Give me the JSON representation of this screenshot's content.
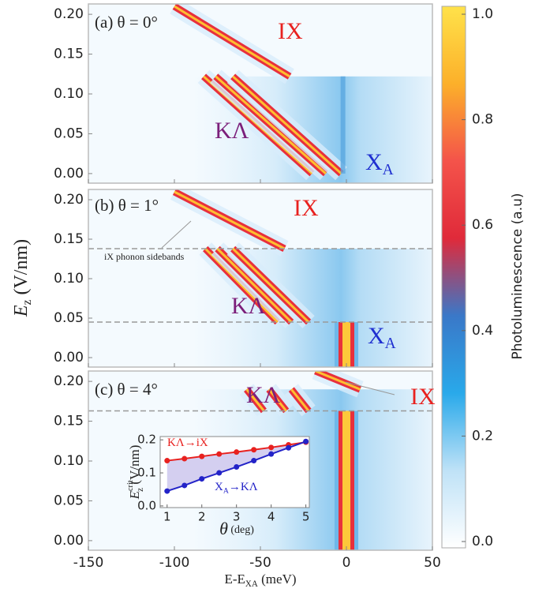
{
  "chart_data": [
    {
      "type": "heatmap-lines",
      "title": "(a) θ = 0°",
      "xlim": [
        -150,
        50
      ],
      "ylim": [
        -0.012,
        0.213
      ],
      "xticks": [
        -150,
        -100,
        -50,
        0,
        50
      ],
      "yticks": [
        {
          "value": 0,
          "label": "0.00"
        },
        {
          "value": 0.05,
          "label": "0.05"
        },
        {
          "value": 0.1,
          "label": "0.10"
        },
        {
          "value": 0.15,
          "label": "0.15"
        },
        {
          "value": 0.2,
          "label": "0.20"
        }
      ],
      "dashed_lines": [],
      "labels": [
        {
          "text": "IX",
          "color": "#e8211f"
        },
        {
          "text": "KΛ",
          "color": "#7b1f7a"
        },
        {
          "text": "X",
          "sub": "A",
          "color": "#1f2fd0"
        }
      ],
      "lines": [
        {
          "x": [
            -100,
            -33
          ],
          "y": [
            0.21,
            0.122
          ],
          "style": "bright"
        },
        {
          "x": [
            -83,
            -20
          ],
          "y": [
            0.122,
            0.0
          ],
          "style": "bright"
        },
        {
          "x": [
            -76,
            -12
          ],
          "y": [
            0.122,
            0.0
          ],
          "style": "bright"
        },
        {
          "x": [
            -66,
            -3
          ],
          "y": [
            0.122,
            0.0
          ],
          "style": "bright"
        },
        {
          "x": [
            -2,
            -2
          ],
          "y": [
            0.0,
            0.122
          ],
          "style": "faint"
        }
      ]
    },
    {
      "type": "heatmap-lines",
      "title": "(b) θ = 1°",
      "xlim": [
        -150,
        50
      ],
      "ylim": [
        -0.012,
        0.213
      ],
      "xticks": [
        -150,
        -100,
        -50,
        0,
        50
      ],
      "yticks": [
        {
          "value": 0,
          "label": "0.00"
        },
        {
          "value": 0.05,
          "label": "0.05"
        },
        {
          "value": 0.1,
          "label": "0.10"
        },
        {
          "value": 0.15,
          "label": "0.15"
        },
        {
          "value": 0.2,
          "label": "0.20"
        }
      ],
      "y_label": {
        "text": "E",
        "sub": "z",
        "after": " (V/nm)"
      },
      "dashed_lines": [
        0.138,
        0.045
      ],
      "annotation": "iX phonon sidebands",
      "labels": [
        {
          "text": "IX",
          "color": "#e8211f"
        },
        {
          "text": "KΛ",
          "color": "#7b1f7a"
        },
        {
          "text": "X",
          "sub": "A",
          "color": "#1f2fd0"
        }
      ],
      "lines": [
        {
          "x": [
            -100,
            -36
          ],
          "y": [
            0.21,
            0.138
          ],
          "style": "bright"
        },
        {
          "x": [
            -82,
            -40
          ],
          "y": [
            0.138,
            0.045
          ],
          "style": "bright"
        },
        {
          "x": [
            -75,
            -32
          ],
          "y": [
            0.138,
            0.045
          ],
          "style": "bright"
        },
        {
          "x": [
            -66,
            -22
          ],
          "y": [
            0.138,
            0.045
          ],
          "style": "bright"
        },
        {
          "x": [
            0,
            0
          ],
          "y": [
            -0.012,
            0.045
          ],
          "style": "wide"
        }
      ]
    },
    {
      "type": "heatmap-lines",
      "title": "(c) θ = 4°",
      "xlim": [
        -150,
        50
      ],
      "ylim": [
        -0.012,
        0.213
      ],
      "xticks": [
        -150,
        -100,
        -50,
        0,
        50
      ],
      "show_xticklabels": true,
      "yticks": [
        {
          "value": 0,
          "label": "0.00"
        },
        {
          "value": 0.05,
          "label": "0.05"
        },
        {
          "value": 0.1,
          "label": "0.10"
        },
        {
          "value": 0.15,
          "label": "0.15"
        },
        {
          "value": 0.2,
          "label": "0.20"
        }
      ],
      "x_label": {
        "text": "E-E",
        "sub": "XA",
        "after": " (meV)"
      },
      "dashed_lines": [
        0.163
      ],
      "labels": [
        {
          "text": "KΛ",
          "color": "#7b1f7a"
        },
        {
          "text": "IX",
          "color": "#e8211f"
        }
      ],
      "lines": [
        {
          "x": [
            -18,
            8
          ],
          "y": [
            0.213,
            0.19
          ],
          "style": "bright"
        },
        {
          "x": [
            -58,
            -48
          ],
          "y": [
            0.19,
            0.163
          ],
          "style": "bright"
        },
        {
          "x": [
            -45,
            -35
          ],
          "y": [
            0.19,
            0.163
          ],
          "style": "bright"
        },
        {
          "x": [
            -32,
            -22
          ],
          "y": [
            0.19,
            0.163
          ],
          "style": "bright"
        },
        {
          "x": [
            0,
            0
          ],
          "y": [
            -0.012,
            0.163
          ],
          "style": "wide"
        }
      ]
    },
    {
      "type": "line",
      "xlim": [
        0.8,
        5.1
      ],
      "ylim": [
        -0.005,
        0.21
      ],
      "xticks": [
        1,
        2,
        3,
        4,
        5
      ],
      "yticks": [
        {
          "value": 0,
          "label": "0.0"
        },
        {
          "value": 0.1,
          "label": "0.1"
        },
        {
          "value": 0.2,
          "label": "0.2"
        }
      ],
      "x_label": {
        "text": "θ",
        "after": " (deg)"
      },
      "y_label": {
        "text": "E",
        "sub": "z",
        "sup": "crit",
        "after": " (V/nm)"
      },
      "x": [
        1,
        1.5,
        2,
        2.5,
        3,
        3.5,
        4,
        4.5,
        5
      ],
      "series": [
        {
          "label": {
            "text": "KΛ→iX"
          },
          "color": "#e8211f",
          "values": [
            0.137,
            0.143,
            0.15,
            0.157,
            0.163,
            0.17,
            0.177,
            0.185,
            0.193
          ]
        },
        {
          "label": {
            "text": "X",
            "sub": "A",
            "after": "→KΛ"
          },
          "color": "#2323c8",
          "values": [
            0.045,
            0.062,
            0.082,
            0.1,
            0.118,
            0.137,
            0.157,
            0.176,
            0.195
          ]
        }
      ]
    },
    {
      "type": "colorbar",
      "label": "Photoluminescence (a.u)",
      "ylim": [
        -0.012,
        1.015
      ],
      "yticks": [
        {
          "value": 0,
          "label": "0.0"
        },
        {
          "value": 0.2,
          "label": "0.2"
        },
        {
          "value": 0.4,
          "label": "0.4"
        },
        {
          "value": 0.6,
          "label": "0.6"
        },
        {
          "value": 0.8,
          "label": "0.8"
        },
        {
          "value": 1,
          "label": "1.0"
        }
      ],
      "colors": [
        "#ffffff",
        "#bfe2f7",
        "#29a9ea",
        "#3a78c8",
        "#e02a3a",
        "#f4534a",
        "#fcb02a",
        "#ffe24a"
      ]
    }
  ]
}
